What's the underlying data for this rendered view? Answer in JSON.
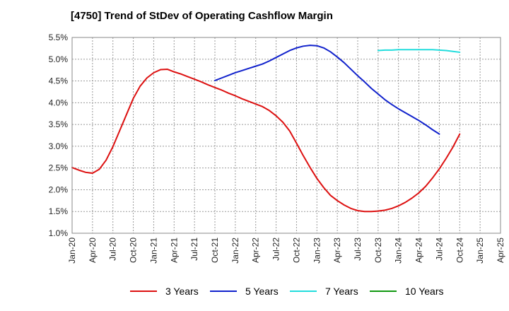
{
  "title": "[4750]  Trend of StDev of Operating Cashflow Margin",
  "chart_data": {
    "type": "line",
    "title": "[4750]  Trend of StDev of Operating Cashflow Margin",
    "x_ticks": [
      "Jan-20",
      "Apr-20",
      "Jul-20",
      "Oct-20",
      "Jan-21",
      "Apr-21",
      "Jul-21",
      "Oct-21",
      "Jan-22",
      "Apr-22",
      "Jul-22",
      "Oct-22",
      "Jan-23",
      "Apr-23",
      "Jul-23",
      "Oct-23",
      "Jan-24",
      "Apr-24",
      "Jul-24",
      "Oct-24",
      "Jan-25",
      "Apr-25"
    ],
    "y_ticks": [
      "1.0%",
      "1.5%",
      "2.0%",
      "2.5%",
      "3.0%",
      "3.5%",
      "4.0%",
      "4.5%",
      "5.0%",
      "5.5%"
    ],
    "ylim": [
      1.0,
      5.5
    ],
    "y_unit": "%",
    "grid": true,
    "legend_position": "bottom",
    "series": [
      {
        "name": "3 Years",
        "color": "#dd1111",
        "points": [
          [
            "Jan-20",
            2.51
          ],
          [
            "Feb-20",
            2.45
          ],
          [
            "Mar-20",
            2.4
          ],
          [
            "Apr-20",
            2.38
          ],
          [
            "May-20",
            2.47
          ],
          [
            "Jun-20",
            2.68
          ],
          [
            "Jul-20",
            2.99
          ],
          [
            "Aug-20",
            3.36
          ],
          [
            "Sep-20",
            3.73
          ],
          [
            "Oct-20",
            4.1
          ],
          [
            "Nov-20",
            4.38
          ],
          [
            "Dec-20",
            4.57
          ],
          [
            "Jan-21",
            4.69
          ],
          [
            "Feb-21",
            4.76
          ],
          [
            "Mar-21",
            4.77
          ],
          [
            "Apr-21",
            4.71
          ],
          [
            "May-21",
            4.66
          ],
          [
            "Jun-21",
            4.6
          ],
          [
            "Jul-21",
            4.54
          ],
          [
            "Aug-21",
            4.48
          ],
          [
            "Sep-21",
            4.41
          ],
          [
            "Oct-21",
            4.35
          ],
          [
            "Nov-21",
            4.29
          ],
          [
            "Dec-21",
            4.22
          ],
          [
            "Jan-22",
            4.16
          ],
          [
            "Feb-22",
            4.09
          ],
          [
            "Mar-22",
            4.03
          ],
          [
            "Apr-22",
            3.97
          ],
          [
            "May-22",
            3.91
          ],
          [
            "Jun-22",
            3.82
          ],
          [
            "Jul-22",
            3.7
          ],
          [
            "Aug-22",
            3.55
          ],
          [
            "Sep-22",
            3.35
          ],
          [
            "Oct-22",
            3.07
          ],
          [
            "Nov-22",
            2.78
          ],
          [
            "Dec-22",
            2.51
          ],
          [
            "Jan-23",
            2.26
          ],
          [
            "Feb-23",
            2.05
          ],
          [
            "Mar-23",
            1.87
          ],
          [
            "Apr-23",
            1.75
          ],
          [
            "May-23",
            1.65
          ],
          [
            "Jun-23",
            1.57
          ],
          [
            "Jul-23",
            1.52
          ],
          [
            "Aug-23",
            1.5
          ],
          [
            "Sep-23",
            1.5
          ],
          [
            "Oct-23",
            1.51
          ],
          [
            "Nov-23",
            1.53
          ],
          [
            "Dec-23",
            1.57
          ],
          [
            "Jan-24",
            1.63
          ],
          [
            "Feb-24",
            1.71
          ],
          [
            "Mar-24",
            1.81
          ],
          [
            "Apr-24",
            1.93
          ],
          [
            "May-24",
            2.08
          ],
          [
            "Jun-24",
            2.27
          ],
          [
            "Jul-24",
            2.48
          ],
          [
            "Aug-24",
            2.72
          ],
          [
            "Sep-24",
            2.98
          ],
          [
            "Oct-24",
            3.28
          ]
        ]
      },
      {
        "name": "5 Years",
        "color": "#1122cc",
        "points": [
          [
            "Oct-21",
            4.51
          ],
          [
            "Nov-21",
            4.57
          ],
          [
            "Dec-21",
            4.63
          ],
          [
            "Jan-22",
            4.69
          ],
          [
            "Feb-22",
            4.74
          ],
          [
            "Mar-22",
            4.79
          ],
          [
            "Apr-22",
            4.84
          ],
          [
            "May-22",
            4.89
          ],
          [
            "Jun-22",
            4.96
          ],
          [
            "Jul-22",
            5.04
          ],
          [
            "Aug-22",
            5.12
          ],
          [
            "Sep-22",
            5.2
          ],
          [
            "Oct-22",
            5.26
          ],
          [
            "Nov-22",
            5.3
          ],
          [
            "Dec-22",
            5.32
          ],
          [
            "Jan-23",
            5.31
          ],
          [
            "Feb-23",
            5.26
          ],
          [
            "Mar-23",
            5.17
          ],
          [
            "Apr-23",
            5.05
          ],
          [
            "May-23",
            4.92
          ],
          [
            "Jun-23",
            4.77
          ],
          [
            "Jul-23",
            4.62
          ],
          [
            "Aug-23",
            4.48
          ],
          [
            "Sep-23",
            4.33
          ],
          [
            "Oct-23",
            4.2
          ],
          [
            "Nov-23",
            4.07
          ],
          [
            "Dec-23",
            3.96
          ],
          [
            "Jan-24",
            3.86
          ],
          [
            "Feb-24",
            3.77
          ],
          [
            "Mar-24",
            3.68
          ],
          [
            "Apr-24",
            3.59
          ],
          [
            "May-24",
            3.49
          ],
          [
            "Jun-24",
            3.38
          ],
          [
            "Jul-24",
            3.28
          ]
        ]
      },
      {
        "name": "7 Years",
        "color": "#22dddd",
        "points": [
          [
            "Oct-23",
            5.2
          ],
          [
            "Nov-23",
            5.21
          ],
          [
            "Dec-23",
            5.21
          ],
          [
            "Jan-24",
            5.22
          ],
          [
            "Feb-24",
            5.22
          ],
          [
            "Mar-24",
            5.22
          ],
          [
            "Apr-24",
            5.22
          ],
          [
            "May-24",
            5.22
          ],
          [
            "Jun-24",
            5.22
          ],
          [
            "Jul-24",
            5.21
          ],
          [
            "Aug-24",
            5.2
          ],
          [
            "Sep-24",
            5.18
          ],
          [
            "Oct-24",
            5.16
          ]
        ]
      },
      {
        "name": "10 Years",
        "color": "#119911",
        "points": []
      }
    ]
  }
}
